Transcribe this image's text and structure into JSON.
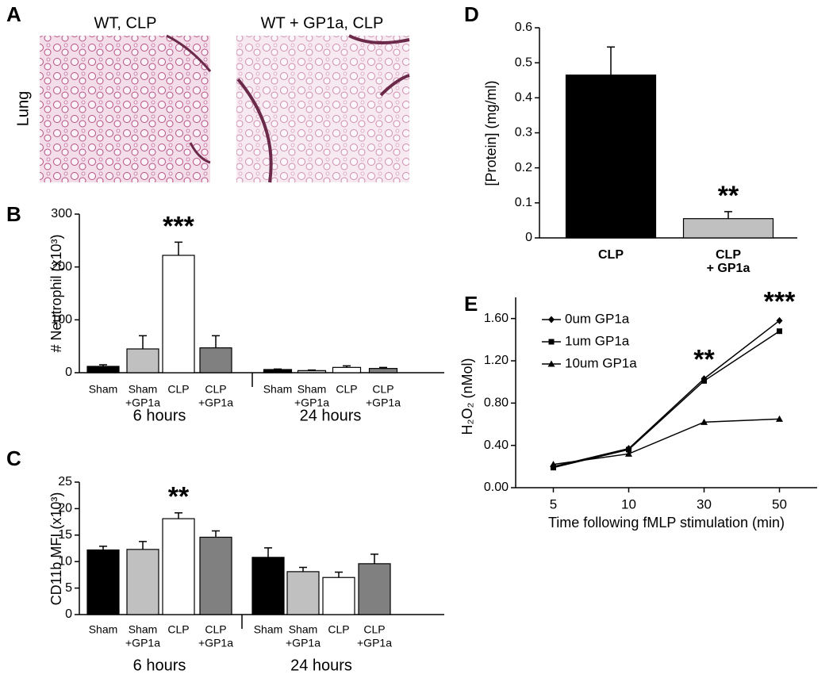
{
  "panel_a": {
    "panel": "A",
    "titles": [
      "WT, CLP",
      "WT + GP1a, CLP"
    ],
    "row_label": "Lung"
  },
  "chart_data": [
    {
      "panel": "B",
      "type": "bar",
      "ylabel": "# Neutrophil (x10³)",
      "ylim": [
        0,
        300
      ],
      "yticks": [
        0,
        100,
        200,
        300
      ],
      "colors": [
        "#000000",
        "#c0c0c0",
        "#ffffff",
        "#808080"
      ],
      "groups": [
        {
          "name": "6 hours",
          "categories": [
            [
              "Sham"
            ],
            [
              "Sham",
              "+GP1a"
            ],
            [
              "CLP"
            ],
            [
              "CLP",
              "+GP1a"
            ]
          ],
          "values": [
            12,
            45,
            222,
            47
          ],
          "errors": [
            3,
            25,
            25,
            23
          ],
          "significance": [
            null,
            null,
            "***",
            null
          ]
        },
        {
          "name": "24 hours",
          "categories": [
            [
              "Sham"
            ],
            [
              "Sham",
              "+GP1a"
            ],
            [
              "CLP"
            ],
            [
              "CLP",
              "+GP1a"
            ]
          ],
          "values": [
            6,
            4,
            10,
            8
          ],
          "errors": [
            1,
            1,
            3,
            2
          ]
        }
      ]
    },
    {
      "panel": "C",
      "type": "bar",
      "ylabel": "CD11b MFI (x10³)",
      "ylim": [
        0,
        25
      ],
      "yticks": [
        0,
        5,
        10,
        15,
        20,
        25
      ],
      "colors": [
        "#000000",
        "#c0c0c0",
        "#ffffff",
        "#808080"
      ],
      "groups": [
        {
          "name": "6 hours",
          "categories": [
            [
              "Sham"
            ],
            [
              "Sham",
              "+GP1a"
            ],
            [
              "CLP"
            ],
            [
              "CLP",
              "+GP1a"
            ]
          ],
          "values": [
            12.2,
            12.3,
            18.1,
            14.6
          ],
          "errors": [
            0.7,
            1.5,
            1.1,
            1.2
          ],
          "significance": [
            null,
            null,
            "**",
            null
          ]
        },
        {
          "name": "24 hours",
          "categories": [
            [
              "Sham"
            ],
            [
              "Sham",
              "+GP1a"
            ],
            [
              "CLP"
            ],
            [
              "CLP",
              "+GP1a"
            ]
          ],
          "values": [
            10.8,
            8.1,
            7.0,
            9.6
          ],
          "errors": [
            1.8,
            0.8,
            1.0,
            1.8
          ]
        }
      ]
    },
    {
      "panel": "D",
      "type": "bar",
      "ylabel": "[Protein] (mg/ml)",
      "ylim": [
        0,
        0.6
      ],
      "yticks": [
        0,
        0.1,
        0.2,
        0.3,
        0.4,
        0.5,
        0.6
      ],
      "colors": [
        "#000000",
        "#c0c0c0"
      ],
      "categories": [
        [
          "CLP"
        ],
        [
          "CLP",
          "+ GP1a"
        ]
      ],
      "values": [
        0.465,
        0.055
      ],
      "errors": [
        0.08,
        0.02
      ],
      "significance": [
        null,
        "**"
      ]
    },
    {
      "panel": "E",
      "type": "line",
      "ylabel": "H₂O₂ (nMol)",
      "xlabel": "Time following fMLP stimulation (min)",
      "categories": [
        "5",
        "10",
        "30",
        "50"
      ],
      "ylim": [
        0,
        1.8
      ],
      "yticks": [
        {
          "value": 0,
          "label": "0.00"
        },
        {
          "value": 0.4,
          "label": "0.40"
        },
        {
          "value": 0.8,
          "label": "0.80"
        },
        {
          "value": 1.2,
          "label": "1.20"
        },
        {
          "value": 1.6,
          "label": "1.60"
        }
      ],
      "series": [
        {
          "name": "0um GP1a",
          "color": "#000000",
          "marker": "diamond",
          "values": [
            0.2,
            0.37,
            1.03,
            1.58
          ]
        },
        {
          "name": "1um GP1a",
          "color": "#000000",
          "marker": "square",
          "values": [
            0.19,
            0.36,
            1.01,
            1.48
          ]
        },
        {
          "name": "10um GP1a",
          "color": "#000000",
          "marker": "triangle",
          "values": [
            0.22,
            0.32,
            0.62,
            0.65
          ]
        }
      ],
      "significance": [
        null,
        null,
        "**",
        "***"
      ]
    }
  ]
}
